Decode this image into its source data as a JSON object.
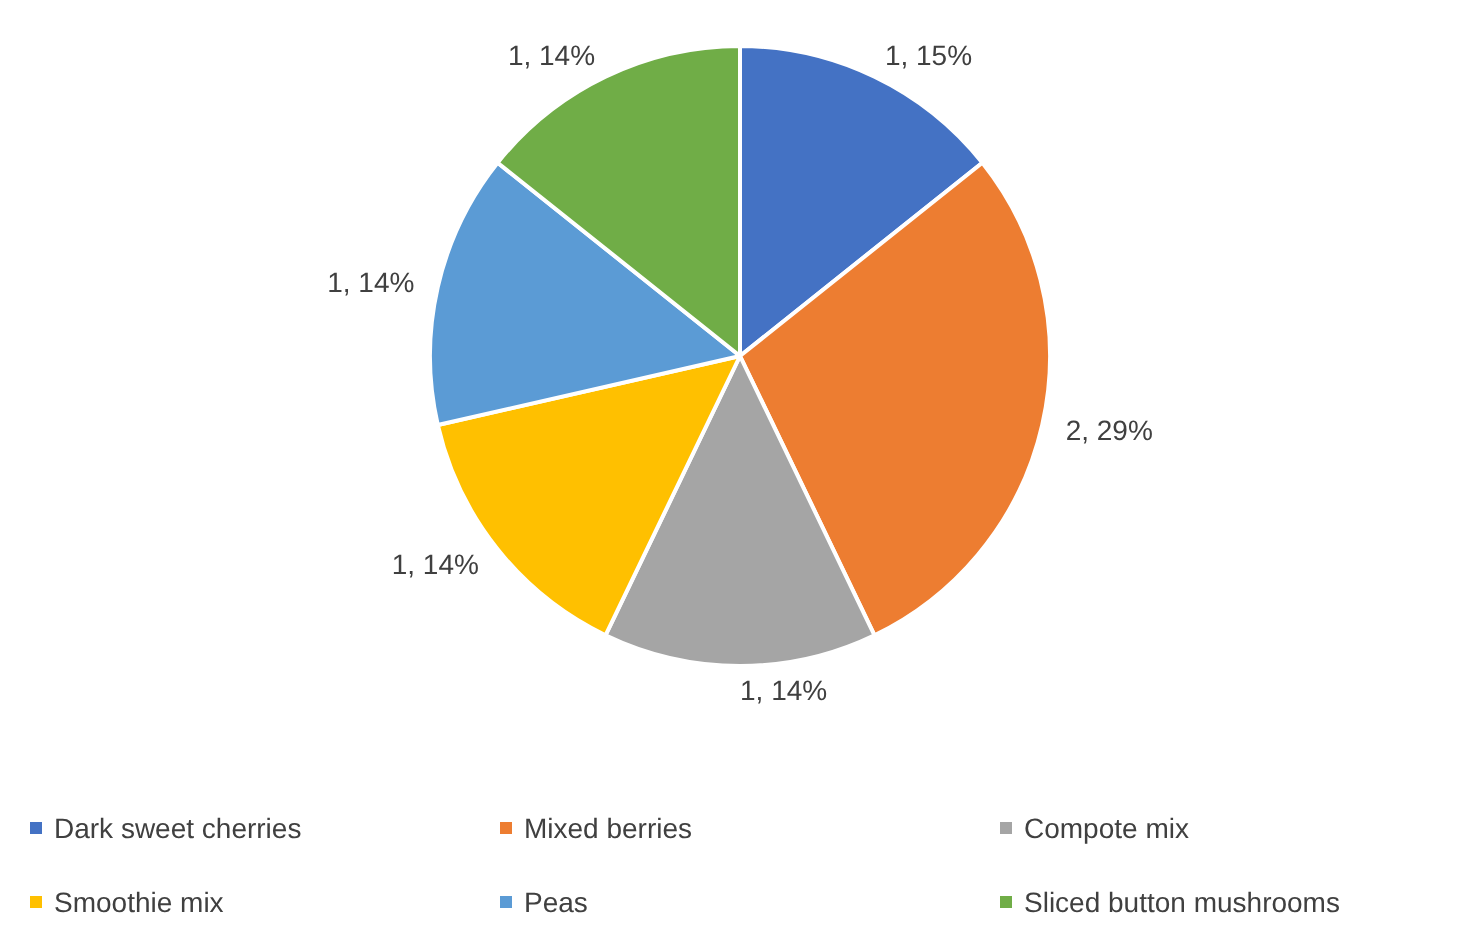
{
  "chart_data": {
    "type": "pie",
    "categories": [
      "Dark sweet cherries",
      "Mixed berries",
      "Compote mix",
      "Smoothie mix",
      "Peas",
      "Sliced button mushrooms"
    ],
    "values": [
      1,
      2,
      1,
      1,
      1,
      1
    ],
    "value_labels": [
      "1, 15%",
      "2, 29%",
      "1, 14%",
      "1, 14%",
      "1, 14%",
      "1, 14%"
    ],
    "colors": [
      "#4472c4",
      "#ed7d31",
      "#a5a5a5",
      "#ffc000",
      "#5b9bd5",
      "#70ad47"
    ],
    "legend": "bottom"
  }
}
